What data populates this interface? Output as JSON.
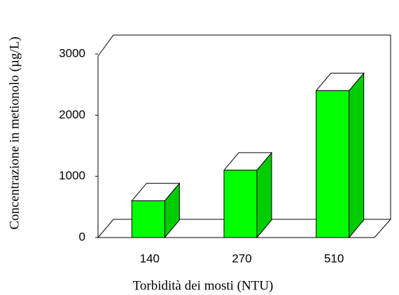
{
  "chart_data": {
    "type": "bar3d",
    "categories": [
      "140",
      "270",
      "510"
    ],
    "values": [
      600,
      1100,
      2400
    ],
    "color": "#00ff00",
    "ylim": [
      0,
      3000
    ],
    "yticks": [
      0,
      1000,
      2000,
      3000
    ],
    "xlabel": "Torbidità dei mosti (NTU)",
    "ylabel": "Concentrazione in metionolo (µg/L)"
  }
}
